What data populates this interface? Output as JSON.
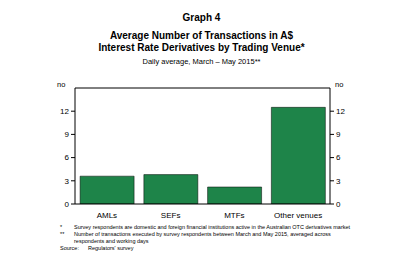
{
  "chart_data": {
    "type": "bar",
    "header": "Graph 4",
    "title": [
      "Average Number of Transactions in A$",
      "Interest Rate Derivatives by Trading Venue*"
    ],
    "subtitle": "Daily average, March – May 2015**",
    "y_label": "no",
    "categories": [
      "AMLs",
      "SEFs",
      "MTFs",
      "Other venues"
    ],
    "values": [
      3.6,
      3.8,
      2.2,
      12.5
    ],
    "color": "#1e8449",
    "ylim": [
      0,
      15
    ],
    "yticks": [
      0,
      3,
      6,
      9,
      12
    ],
    "grid": false,
    "notes": [
      {
        "mark": "*",
        "text": "Survey respondents are domestic and foreign financial institutions active in the Australian OTC derivatives market"
      },
      {
        "mark": "**",
        "text": "Number of transactions executed by survey respondents between March and May 2015, averaged across respondents and working days"
      }
    ],
    "source_label": "Source:",
    "source": "Regulators' survey"
  }
}
